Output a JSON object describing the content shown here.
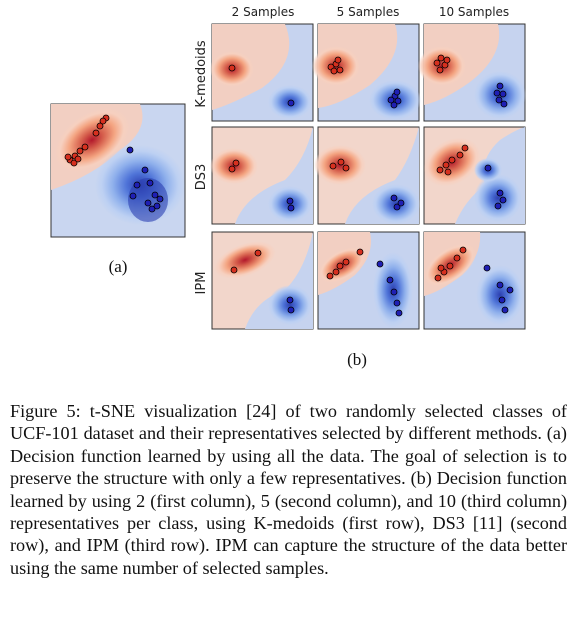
{
  "figure": {
    "column_headers": [
      "2 Samples",
      "5 Samples",
      "10 Samples"
    ],
    "row_headers": [
      "K-medoids",
      "DS3",
      "IPM"
    ],
    "label_a": "(a)",
    "label_b": "(b)",
    "colors": {
      "red_class": "#d7301f",
      "blue_class": "#1f1fb4",
      "red_region": "#f4cdbf",
      "blue_region": "#c6d3ef",
      "panel_border": "#333333"
    }
  },
  "caption": {
    "text": "Figure 5:  t-SNE visualization [24] of two randomly selected classes of UCF-101 dataset and their representatives selected by different methods. (a) Decision function learned by using all the data. The goal of selection is to preserve the structure with only a few representatives. (b) Decision function learned by using 2 (first column), 5 (second column), and 10 (third column) representatives per class, using K-medoids (first row), DS3 [11] (second row), and IPM (third row). IPM can capture the structure of the data better using the same number of selected samples."
  }
}
